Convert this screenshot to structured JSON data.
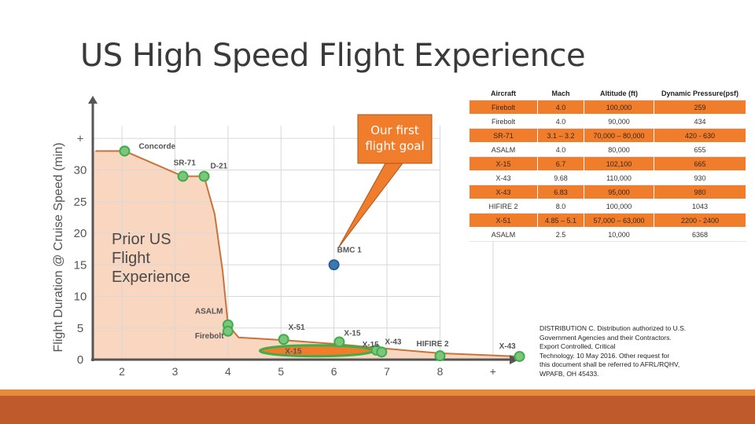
{
  "slide": {
    "title": "US High Speed Flight Experience",
    "callout": [
      "Our first",
      "flight goal"
    ],
    "distribution": [
      "DISTRIBUTION C. Distribution authorized to U.S.",
      "Government Agencies and their Contractors.",
      "Export Controlled, Critical",
      "Technology. 10 May 2016. Other request for",
      "this document shall be referred to AFRL/RQHV,",
      "WPAFB, OH 45433."
    ],
    "colors": {
      "orange": "#f07d2c",
      "bar_light": "#e88a3c",
      "bar_dark": "#bf5a2d",
      "area_fill": "#f9d6bf",
      "area_stroke": "#c8733a",
      "marker_green": "#3fae49",
      "marker_blue": "#3b79b4"
    }
  },
  "chart_data": {
    "type": "area",
    "ylabel": "Flight Duration @ Cruise Speed (min)",
    "xlim": [
      1,
      10
    ],
    "ylim": [
      0,
      35
    ],
    "x_ticks": [
      "2",
      "3",
      "4",
      "5",
      "6",
      "7",
      "8",
      "+"
    ],
    "y_ticks": [
      "0",
      "5",
      "10",
      "15",
      "20",
      "25",
      "30",
      "+"
    ],
    "area_label": [
      "Prior US",
      "Flight",
      "Experience"
    ],
    "boundary": [
      [
        1.5,
        33
      ],
      [
        2.05,
        33
      ],
      [
        3.15,
        29
      ],
      [
        3.55,
        29
      ],
      [
        3.75,
        23
      ],
      [
        3.9,
        14
      ],
      [
        4.0,
        5.5
      ],
      [
        4.2,
        3.5
      ],
      [
        5.0,
        3.1
      ],
      [
        6.0,
        2.5
      ],
      [
        6.9,
        1.8
      ],
      [
        8.0,
        1.0
      ],
      [
        9.2,
        0.6
      ],
      [
        9.5,
        0.5
      ]
    ],
    "points": [
      {
        "label": "Concorde",
        "x": 2.05,
        "y": 33,
        "color": "green"
      },
      {
        "label": "SR-71",
        "x": 3.15,
        "y": 29,
        "color": "green"
      },
      {
        "label": "D-21",
        "x": 3.55,
        "y": 29,
        "color": "green"
      },
      {
        "label": "ASALM",
        "x": 4.0,
        "y": 5.5,
        "color": "green"
      },
      {
        "label": "Firebolt",
        "x": 4.0,
        "y": 4.5,
        "color": "green"
      },
      {
        "label": "X-51",
        "x": 5.05,
        "y": 3.2,
        "color": "green"
      },
      {
        "label": "X-15",
        "x": 6.1,
        "y": 2.8,
        "color": "green"
      },
      {
        "label": "X-15",
        "x": 6.8,
        "y": 1.5,
        "color": "green"
      },
      {
        "label": "X-43",
        "x": 6.9,
        "y": 1.2,
        "color": "green"
      },
      {
        "label": "HIFIRE 2",
        "x": 8.0,
        "y": 0.6,
        "color": "green"
      },
      {
        "label": "X-43",
        "x": 9.5,
        "y": 0.5,
        "color": "green"
      },
      {
        "label": "BMC 1",
        "x": 6.0,
        "y": 15,
        "color": "blue"
      }
    ],
    "ellipse": {
      "label": "X-15",
      "x_center": 5.67,
      "y_center": 1.4
    }
  },
  "table": {
    "headers": [
      "Aircraft",
      "Mach",
      "Altitude (ft)",
      "Dynamic Pressure(psf)"
    ],
    "rows": [
      [
        "Firebolt",
        "4.0",
        "100,000",
        "259"
      ],
      [
        "Firebolt",
        "4.0",
        "90,000",
        "434"
      ],
      [
        "SR-71",
        "3.1 – 3.2",
        "70,000 – 80,000",
        "420 - 630"
      ],
      [
        "ASALM",
        "4.0",
        "80,000",
        "655"
      ],
      [
        "X-15",
        "6.7",
        "102,100",
        "665"
      ],
      [
        "X-43",
        "9.68",
        "110,000",
        "930"
      ],
      [
        "X-43",
        "6.83",
        "95,000",
        "980"
      ],
      [
        "HIFIRE 2",
        "8.0",
        "100,000",
        "1043"
      ],
      [
        "X-51",
        "4.85 – 5.1",
        "57,000 – 63,000",
        "2200 - 2400"
      ],
      [
        "ASALM",
        "2.5",
        "10,000",
        "6368"
      ]
    ]
  }
}
